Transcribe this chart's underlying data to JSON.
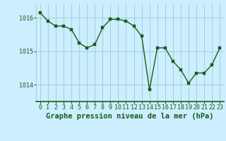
{
  "x": [
    0,
    1,
    2,
    3,
    4,
    5,
    6,
    7,
    8,
    9,
    10,
    11,
    12,
    13,
    14,
    15,
    16,
    17,
    18,
    19,
    20,
    21,
    22,
    23
  ],
  "y": [
    1016.15,
    1015.9,
    1015.75,
    1015.75,
    1015.65,
    1015.25,
    1015.1,
    1015.2,
    1015.7,
    1015.95,
    1015.95,
    1015.9,
    1015.75,
    1015.45,
    1013.85,
    1015.1,
    1015.1,
    1014.7,
    1014.45,
    1014.05,
    1014.35,
    1014.35,
    1014.6,
    1015.1
  ],
  "line_color": "#1a5c1a",
  "marker_color": "#1a5c1a",
  "bg_color": "#cceeff",
  "grid_color": "#99cccc",
  "xlabel": "Graphe pression niveau de la mer (hPa)",
  "xlabel_color": "#1a5c1a",
  "tick_color": "#1a5c1a",
  "ylim": [
    1013.5,
    1016.4
  ],
  "yticks": [
    1014,
    1015,
    1016
  ],
  "xticks": [
    0,
    1,
    2,
    3,
    4,
    5,
    6,
    7,
    8,
    9,
    10,
    11,
    12,
    13,
    14,
    15,
    16,
    17,
    18,
    19,
    20,
    21,
    22,
    23
  ],
  "marker_size": 2.5,
  "line_width": 1.0,
  "xlabel_fontsize": 7.5,
  "tick_fontsize": 6.0
}
